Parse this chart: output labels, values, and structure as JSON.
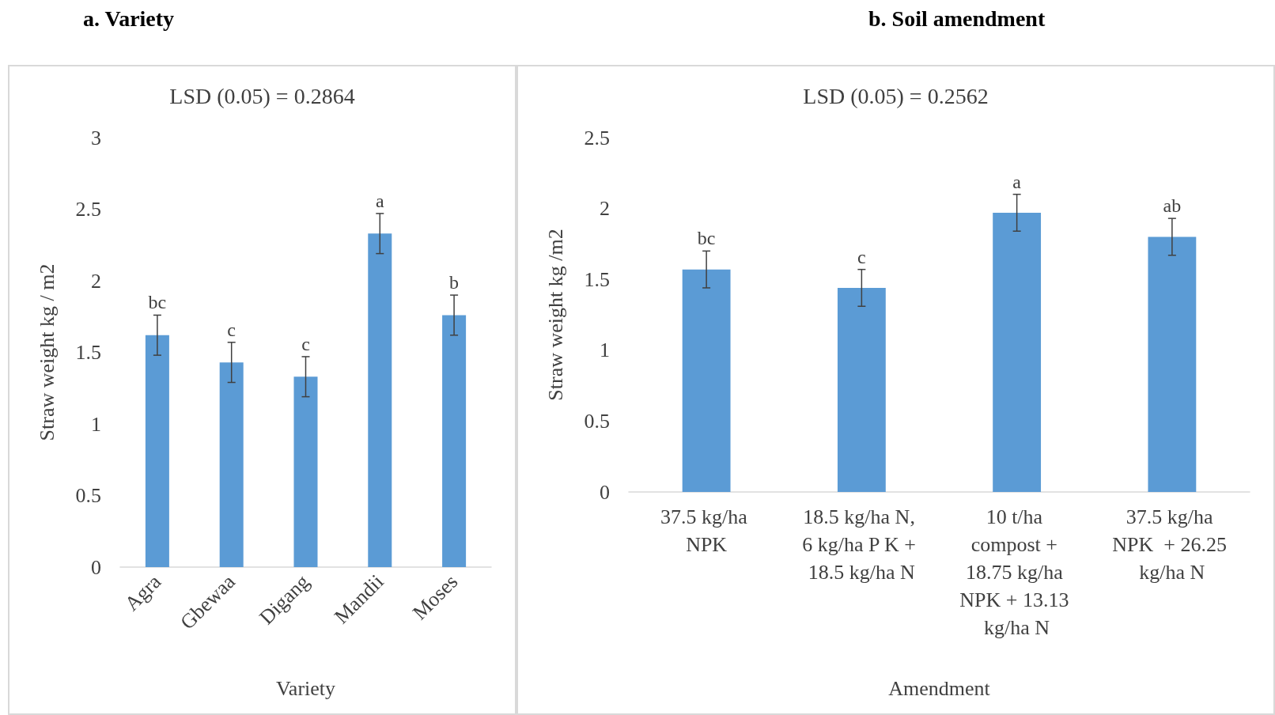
{
  "chart_data": [
    {
      "type": "bar",
      "title": "a.   Variety",
      "subtitle": "LSD (0.05) = 0.2864",
      "xlabel": "Variety",
      "ylabel": "Straw weight kg / m2",
      "categories": [
        "Agra",
        "Gbewaa",
        "Digang",
        "Mandii",
        "Moses"
      ],
      "series": [
        {
          "color": "#5b9bd5",
          "values": [
            1.62,
            1.43,
            1.33,
            2.33,
            1.76
          ],
          "errors": [
            0.14,
            0.14,
            0.14,
            0.14,
            0.14
          ]
        }
      ],
      "ylim": [
        0,
        3
      ],
      "yticks": [
        0,
        0.5,
        1,
        1.5,
        2,
        2.5,
        3
      ],
      "grid": false,
      "annotations": [
        {
          "text": "bc",
          "x": "Agra",
          "y": 1.76
        },
        {
          "text": "c",
          "x": "Gbewaa",
          "y": 1.57
        },
        {
          "text": "c",
          "x": "Digang",
          "y": 1.47
        },
        {
          "text": "a",
          "x": "Mandii",
          "y": 2.47
        },
        {
          "text": "b",
          "x": "Moses",
          "y": 1.9
        }
      ]
    },
    {
      "type": "bar",
      "title": "b. Soil amendment",
      "subtitle": "LSD (0.05) = 0.2562",
      "xlabel": "Amendment",
      "ylabel": "Straw weight kg /m2",
      "categories": [
        "37.5 kg/ha NPK",
        "18.5 kg/ha N, 6 kg/ha P K + 18.5 kg/ha N",
        "10 t/ha compost + 18.75 kg/ha NPK + 13.13 kg/ha N",
        "37.5 kg/ha NPK  + 26.25 kg/ha N"
      ],
      "series": [
        {
          "color": "#5b9bd5",
          "values": [
            1.57,
            1.44,
            1.97,
            1.8
          ],
          "errors": [
            0.13,
            0.13,
            0.13,
            0.13
          ]
        }
      ],
      "ylim": [
        0,
        2.5
      ],
      "yticks": [
        0,
        0.5,
        1,
        1.5,
        2,
        2.5
      ],
      "grid": false,
      "annotations": [
        {
          "text": "bc",
          "x": "37.5 kg/ha NPK",
          "y": 1.7
        },
        {
          "text": "c",
          "x": "18.5 kg/ha N, 6 kg/ha P K + 18.5 kg/ha N",
          "y": 1.57
        },
        {
          "text": "a",
          "x": "10 t/ha compost + 18.75 kg/ha NPK + 13.13 kg/ha N",
          "y": 2.1
        },
        {
          "text": "ab",
          "x": "37.5 kg/ha NPK  + 26.25 kg/ha N",
          "y": 1.93
        }
      ]
    }
  ]
}
